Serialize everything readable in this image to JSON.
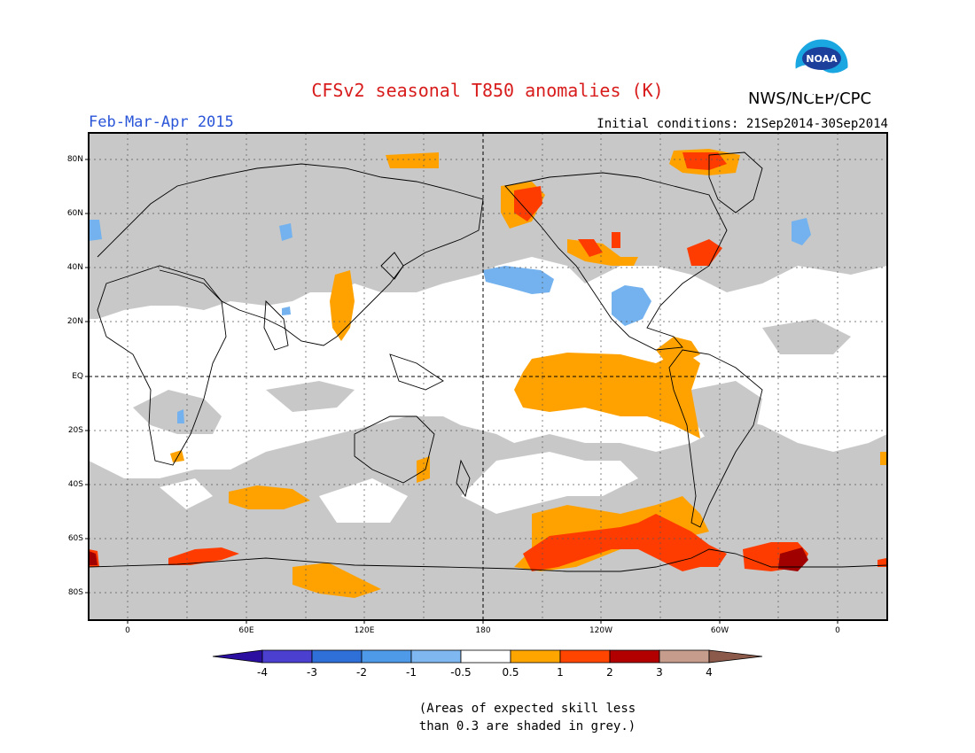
{
  "title": "CFSv2 seasonal T850 anomalies (K)",
  "agency": "NWS/NCEP/CPC",
  "season": "Feb-Mar-Apr 2015",
  "initial_conditions": "Initial conditions: 21Sep2014-30Sep2014",
  "logo_text": "NOAA",
  "map": {
    "lat_labels": [
      "80N",
      "60N",
      "40N",
      "20N",
      "EQ",
      "20S",
      "40S",
      "60S",
      "80S"
    ],
    "lon_labels": [
      "0",
      "60E",
      "120E",
      "180",
      "120W",
      "60W",
      "0"
    ]
  },
  "colorbar": {
    "labels": [
      "-4",
      "-3",
      "-2",
      "-1",
      "-0.5",
      "0.5",
      "1",
      "2",
      "3",
      "4"
    ],
    "colors": [
      "#2a0fa0",
      "#4a3fcf",
      "#2f6fd8",
      "#4f9ae8",
      "#7fb8f0",
      "#ffffff",
      "#ffa500",
      "#ff4500",
      "#b20000",
      "#c69c8c",
      "#8b5a4a"
    ]
  },
  "note_line1": "(Areas of expected skill less",
  "note_line2": "than 0.3 are shaded in grey.)",
  "colors": {
    "grey": "#c8c8c8",
    "orange": "#ffa200",
    "red": "#ff3c00",
    "darkred": "#a00000",
    "lightblue": "#73b2ee",
    "title_red": "#d81c1c",
    "season_blue": "#2a55d8"
  }
}
